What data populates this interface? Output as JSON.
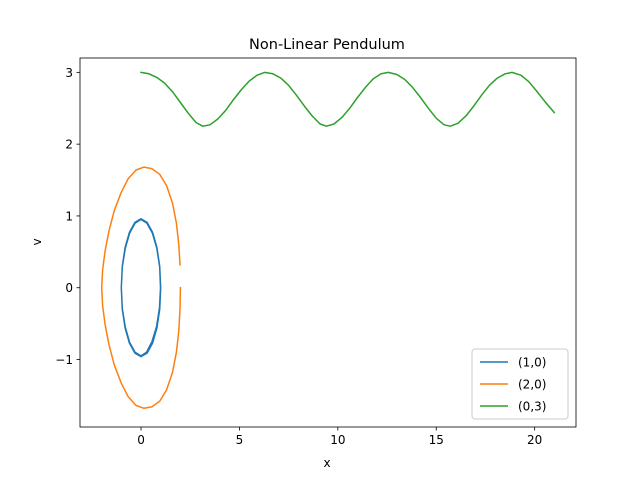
{
  "chart_data": {
    "type": "line",
    "title": "Non-Linear Pendulum",
    "xlabel": "x",
    "ylabel": "v",
    "xlim": [
      -3.1,
      22.1
    ],
    "ylim": [
      -1.94,
      3.2
    ],
    "xticks": [
      0,
      5,
      10,
      15,
      20
    ],
    "xtick_labels": [
      "0",
      "5",
      "10",
      "15",
      "20"
    ],
    "yticks": [
      -1,
      0,
      1,
      2,
      3
    ],
    "ytick_labels": [
      "−1",
      "0",
      "1",
      "2",
      "3"
    ],
    "grid": false,
    "legend_position": "lower right",
    "series": [
      {
        "name": "(1,0)",
        "color": "#1f77b4",
        "x": [
          1.0,
          0.951,
          0.809,
          0.588,
          0.309,
          0.0,
          -0.309,
          -0.588,
          -0.809,
          -0.951,
          -1.0,
          -0.951,
          -0.809,
          -0.588,
          -0.309,
          0.0,
          0.309,
          0.588,
          0.809,
          0.951,
          0.995,
          0.94,
          0.79,
          0.56,
          0.28,
          0.0,
          -0.3,
          -0.58,
          -0.8,
          -0.95,
          -1.0,
          -0.95,
          -0.8,
          -0.58,
          -0.3,
          0.0,
          0.3,
          0.58,
          0.8,
          0.95,
          0.99
        ],
        "y": [
          0.0,
          -0.3,
          -0.56,
          -0.77,
          -0.91,
          -0.96,
          -0.91,
          -0.77,
          -0.56,
          -0.3,
          0.0,
          0.3,
          0.56,
          0.77,
          0.91,
          0.96,
          0.91,
          0.77,
          0.56,
          0.3,
          0.02,
          -0.28,
          -0.54,
          -0.75,
          -0.9,
          -0.95,
          -0.9,
          -0.76,
          -0.55,
          -0.29,
          0.0,
          0.29,
          0.55,
          0.76,
          0.9,
          0.95,
          0.9,
          0.76,
          0.55,
          0.29,
          0.0
        ]
      },
      {
        "name": "(2,0)",
        "color": "#ff7f0e",
        "x": [
          2.0,
          1.98,
          1.92,
          1.8,
          1.6,
          1.3,
          0.95,
          0.55,
          0.15,
          -0.25,
          -0.65,
          -1.0,
          -1.35,
          -1.62,
          -1.82,
          -1.95,
          -2.0,
          -1.95,
          -1.82,
          -1.62,
          -1.35,
          -1.0,
          -0.65,
          -0.25,
          0.15,
          0.55,
          0.95,
          1.3,
          1.6,
          1.8,
          1.92,
          1.98
        ],
        "y": [
          0.0,
          -0.3,
          -0.6,
          -0.9,
          -1.18,
          -1.42,
          -1.58,
          -1.66,
          -1.68,
          -1.64,
          -1.52,
          -1.33,
          -1.08,
          -0.8,
          -0.52,
          -0.25,
          0.0,
          0.25,
          0.52,
          0.8,
          1.08,
          1.33,
          1.52,
          1.64,
          1.68,
          1.66,
          1.58,
          1.42,
          1.18,
          0.9,
          0.6,
          0.32
        ]
      },
      {
        "name": "(0,3)",
        "color": "#2ca02c",
        "x": [
          0.0,
          0.4,
          0.8,
          1.2,
          1.6,
          2.0,
          2.4,
          2.8,
          3.14,
          3.5,
          3.9,
          4.3,
          4.7,
          5.1,
          5.5,
          5.9,
          6.28,
          6.7,
          7.1,
          7.5,
          7.9,
          8.3,
          8.7,
          9.1,
          9.42,
          9.8,
          10.2,
          10.6,
          11.0,
          11.4,
          11.8,
          12.2,
          12.57,
          13.0,
          13.4,
          13.8,
          14.2,
          14.6,
          15.0,
          15.4,
          15.71,
          16.1,
          16.5,
          16.9,
          17.3,
          17.7,
          18.1,
          18.5,
          18.85,
          19.3,
          19.7,
          20.1,
          20.5,
          21.0
        ],
        "y": [
          3.0,
          2.98,
          2.93,
          2.85,
          2.73,
          2.58,
          2.43,
          2.3,
          2.25,
          2.27,
          2.35,
          2.47,
          2.62,
          2.76,
          2.88,
          2.96,
          3.0,
          2.98,
          2.92,
          2.82,
          2.68,
          2.53,
          2.39,
          2.28,
          2.25,
          2.28,
          2.37,
          2.5,
          2.65,
          2.79,
          2.91,
          2.98,
          3.0,
          2.97,
          2.9,
          2.79,
          2.65,
          2.5,
          2.36,
          2.27,
          2.25,
          2.29,
          2.39,
          2.53,
          2.68,
          2.82,
          2.92,
          2.98,
          3.0,
          2.96,
          2.87,
          2.74,
          2.6,
          2.44
        ]
      }
    ]
  }
}
